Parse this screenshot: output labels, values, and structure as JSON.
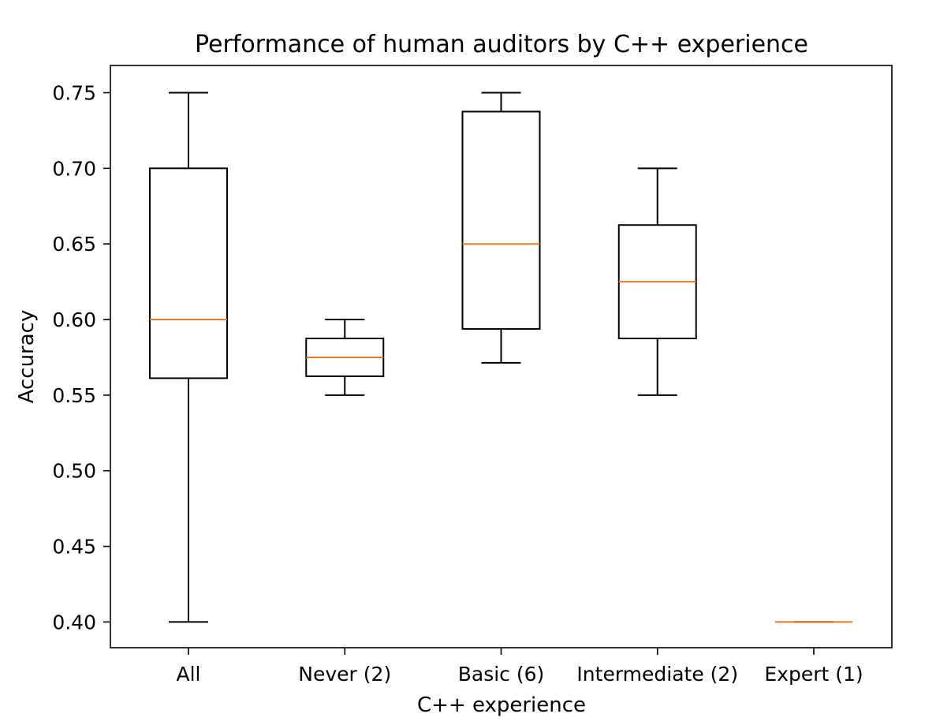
{
  "chart_data": {
    "type": "box",
    "title": "Performance of human auditors by C++ experience",
    "xlabel": "C++ experience",
    "ylabel": "Accuracy",
    "ylim": [
      0.383,
      0.768
    ],
    "yticks": [
      "0.40",
      "0.45",
      "0.50",
      "0.55",
      "0.60",
      "0.65",
      "0.70",
      "0.75"
    ],
    "ytick_values": [
      0.4,
      0.45,
      0.5,
      0.55,
      0.6,
      0.65,
      0.7,
      0.75
    ],
    "grid": false,
    "categories": [
      "All",
      "Never (2)",
      "Basic (6)",
      "Intermediate (2)",
      "Expert (1)"
    ],
    "boxes": [
      {
        "category": "All",
        "whisker_low": 0.4,
        "q1": 0.5612,
        "median": 0.6,
        "q3": 0.7,
        "whisker_high": 0.75
      },
      {
        "category": "Never (2)",
        "whisker_low": 0.55,
        "q1": 0.5625,
        "median": 0.575,
        "q3": 0.5875,
        "whisker_high": 0.6
      },
      {
        "category": "Basic (6)",
        "whisker_low": 0.5714,
        "q1": 0.5938,
        "median": 0.65,
        "q3": 0.7375,
        "whisker_high": 0.75
      },
      {
        "category": "Intermediate (2)",
        "whisker_low": 0.55,
        "q1": 0.5875,
        "median": 0.625,
        "q3": 0.6625,
        "whisker_high": 0.7
      },
      {
        "category": "Expert (1)",
        "whisker_low": 0.4,
        "q1": 0.4,
        "median": 0.4,
        "q3": 0.4,
        "whisker_high": 0.4
      }
    ],
    "colors": {
      "box": "#000000",
      "median": "#e07b2a",
      "axes": "#000000"
    }
  }
}
